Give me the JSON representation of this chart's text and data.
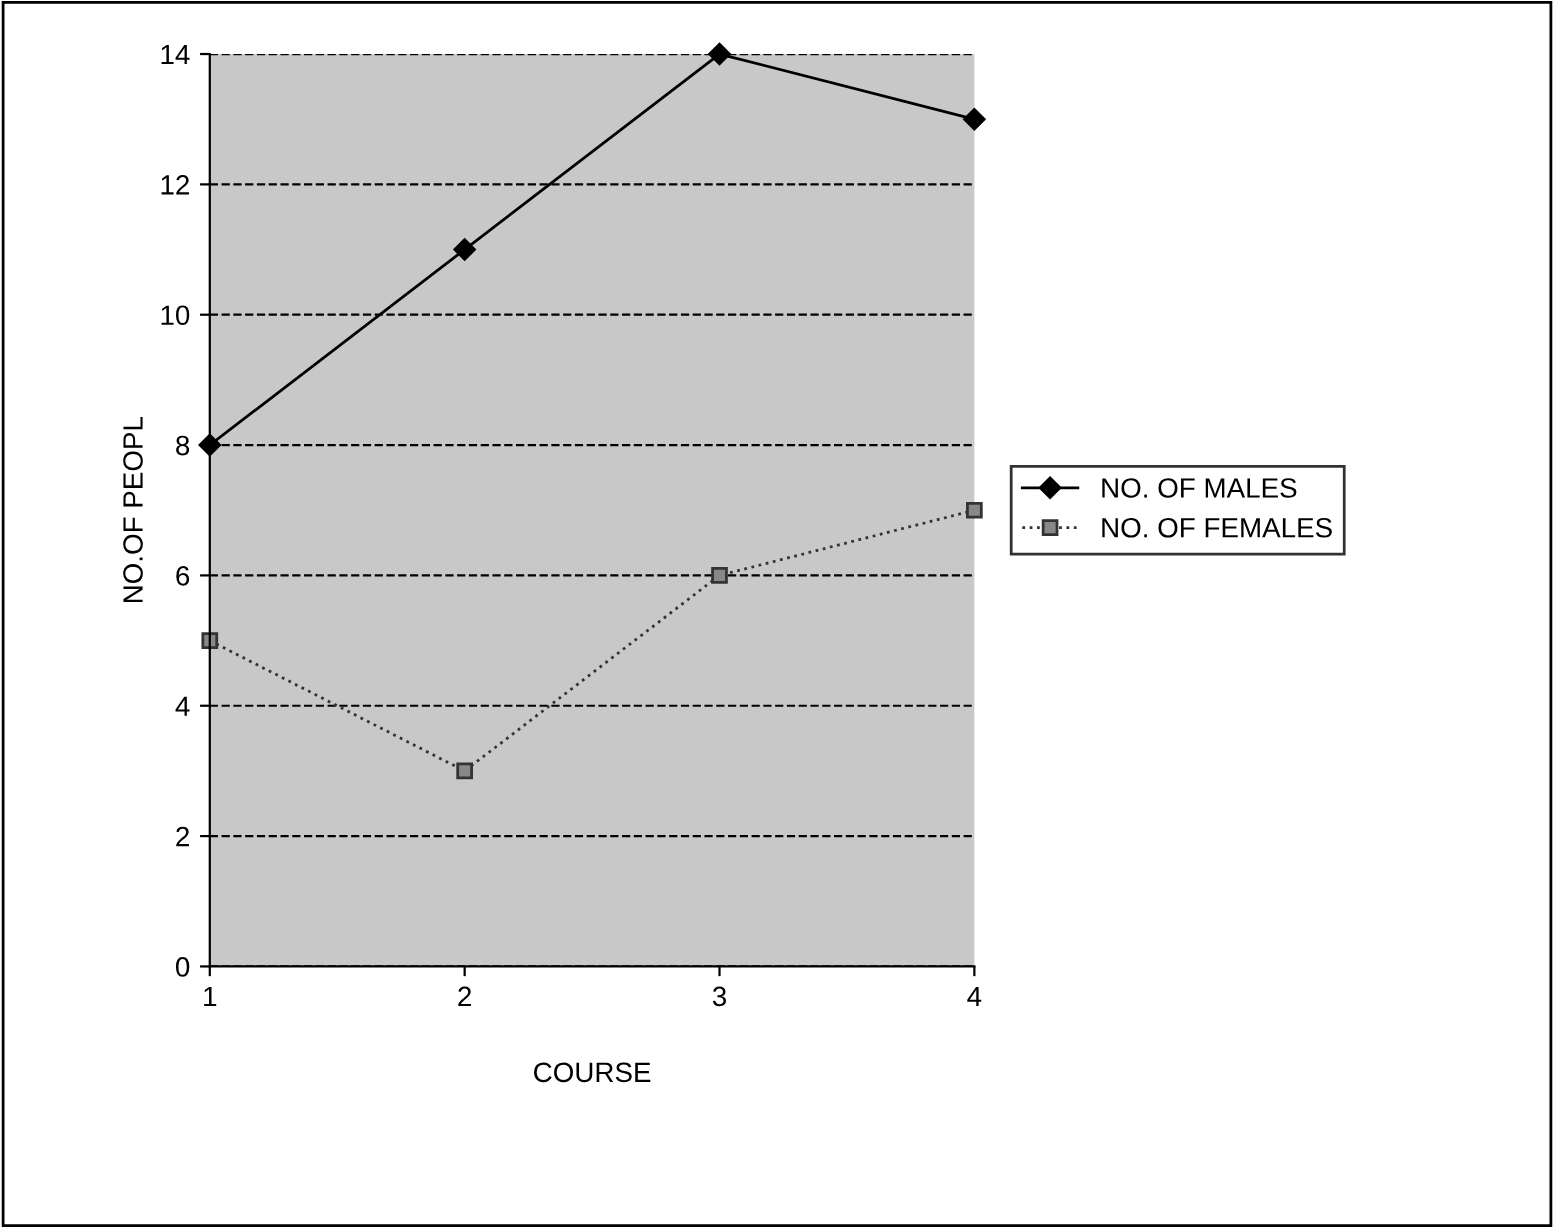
{
  "chart_data": {
    "type": "line",
    "xlabel": "COURSE",
    "ylabel": "NO.OF PEOPL",
    "categories": [
      "1",
      "2",
      "3",
      "4"
    ],
    "series": [
      {
        "name": "NO. OF MALES",
        "color": "#000000",
        "values": [
          8,
          11,
          14,
          13
        ],
        "marker": "diamond",
        "line_style": "solid"
      },
      {
        "name": "NO. OF FEMALES",
        "color": "#333333",
        "values": [
          5,
          3,
          6,
          7
        ],
        "marker": "square",
        "line_style": "dotted"
      }
    ],
    "ylim": [
      0,
      14
    ],
    "yticks": [
      0,
      2,
      4,
      6,
      8,
      10,
      12,
      14
    ],
    "grid": "y",
    "legend": "right"
  }
}
